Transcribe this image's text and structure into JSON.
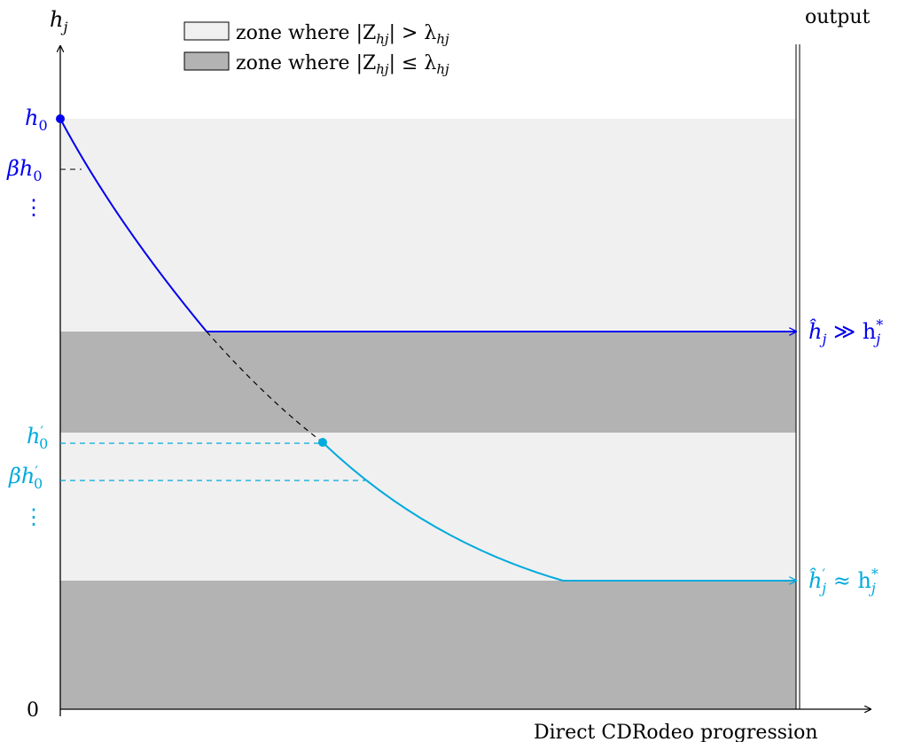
{
  "colors": {
    "light_zone": "#f0f0f0",
    "dark_zone": "#b3b3b3",
    "blue": "#0000ee",
    "cyan": "#00aadd",
    "axis": "#000000"
  },
  "axes": {
    "y_label": "h",
    "y_label_sub": "j",
    "origin": "0",
    "x_label": "Direct CDRodeo progression",
    "output_label": "output"
  },
  "legend": {
    "light": {
      "prefix": "zone where |Z",
      "sub1": "hj",
      "relation": "| > λ",
      "sub2": "hj"
    },
    "dark": {
      "prefix": "zone where |Z",
      "sub1": "hj",
      "relation": "| ≤ λ",
      "sub2": "hj"
    }
  },
  "y_ticks": {
    "h0": {
      "main": "h",
      "sub": "0"
    },
    "beta_h0": {
      "main": "βh",
      "sub": "0"
    },
    "h0_prime": {
      "main": "h",
      "sup": "′",
      "sub": "0"
    },
    "beta_h0_prime": {
      "main": "βh",
      "sup": "′",
      "sub": "0"
    },
    "vdots": "⋮"
  },
  "outputs": {
    "blue": {
      "main": "ĥ",
      "sub": "j",
      "relation": " ≫ h",
      "sup_end": "*",
      "sub_end": "j"
    },
    "cyan": {
      "main": "ĥ",
      "sup": "′",
      "sub": "j",
      "relation": " ≈ h",
      "sup_end": "*",
      "sub_end": "j"
    }
  }
}
